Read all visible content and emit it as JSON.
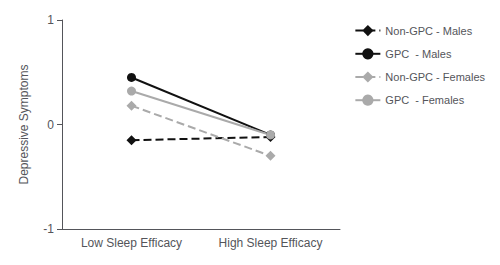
{
  "chart_data": {
    "type": "line",
    "categories": [
      "Low Sleep Efficacy",
      "High Sleep Efficacy"
    ],
    "ylabel": "Depressive Symptoms",
    "series": [
      {
        "name": "Non-GPC - Males",
        "color": "#111111",
        "marker": "diamond",
        "line_style": "dashed",
        "values": [
          -0.15,
          -0.12
        ]
      },
      {
        "name": "GPC  - Males",
        "color": "#111111",
        "marker": "circle",
        "line_style": "solid",
        "values": [
          0.45,
          -0.1
        ]
      },
      {
        "name": "Non-GPC - Females",
        "color": "#aaaaaa",
        "marker": "diamond",
        "line_style": "dashed",
        "values": [
          0.18,
          -0.3
        ]
      },
      {
        "name": "GPC  - Females",
        "color": "#aaaaaa",
        "marker": "circle",
        "line_style": "solid",
        "values": [
          0.32,
          -0.1
        ]
      }
    ],
    "ylim": [
      -1,
      1
    ],
    "yticks": [
      -1,
      0,
      1
    ],
    "grid": false,
    "legend": "right"
  }
}
